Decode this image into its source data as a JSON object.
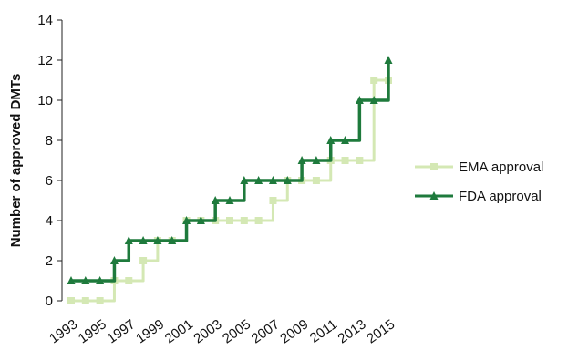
{
  "chart_data": {
    "type": "line",
    "ylabel": "Number of approved DMTs",
    "xlabel": "",
    "ylim": [
      0,
      14
    ],
    "y_ticks": [
      "0",
      "2",
      "4",
      "6",
      "8",
      "10",
      "12",
      "14"
    ],
    "x": [
      1993,
      1994,
      1995,
      1996,
      1997,
      1998,
      1999,
      2000,
      2001,
      2002,
      2003,
      2004,
      2005,
      2006,
      2007,
      2008,
      2009,
      2010,
      2011,
      2012,
      2013,
      2014,
      2015
    ],
    "x_tick_labels": [
      "1993",
      "1995",
      "1997",
      "1999",
      "2001",
      "2003",
      "2005",
      "2007",
      "2009",
      "2011",
      "2013",
      "2015"
    ],
    "series": [
      {
        "name": "EMA approval",
        "color": "#d4e8b4",
        "marker": "square",
        "values": [
          0,
          0,
          0,
          1,
          1,
          2,
          3,
          3,
          4,
          4,
          4,
          4,
          4,
          4,
          5,
          6,
          6,
          6,
          7,
          7,
          7,
          11,
          11
        ]
      },
      {
        "name": "FDA approval",
        "color": "#1e7a3c",
        "marker": "triangle",
        "values": [
          1,
          1,
          1,
          2,
          3,
          3,
          3,
          3,
          4,
          4,
          5,
          5,
          6,
          6,
          6,
          6,
          7,
          7,
          8,
          8,
          10,
          10,
          12
        ]
      }
    ],
    "grid": false,
    "legend_position": "right"
  }
}
